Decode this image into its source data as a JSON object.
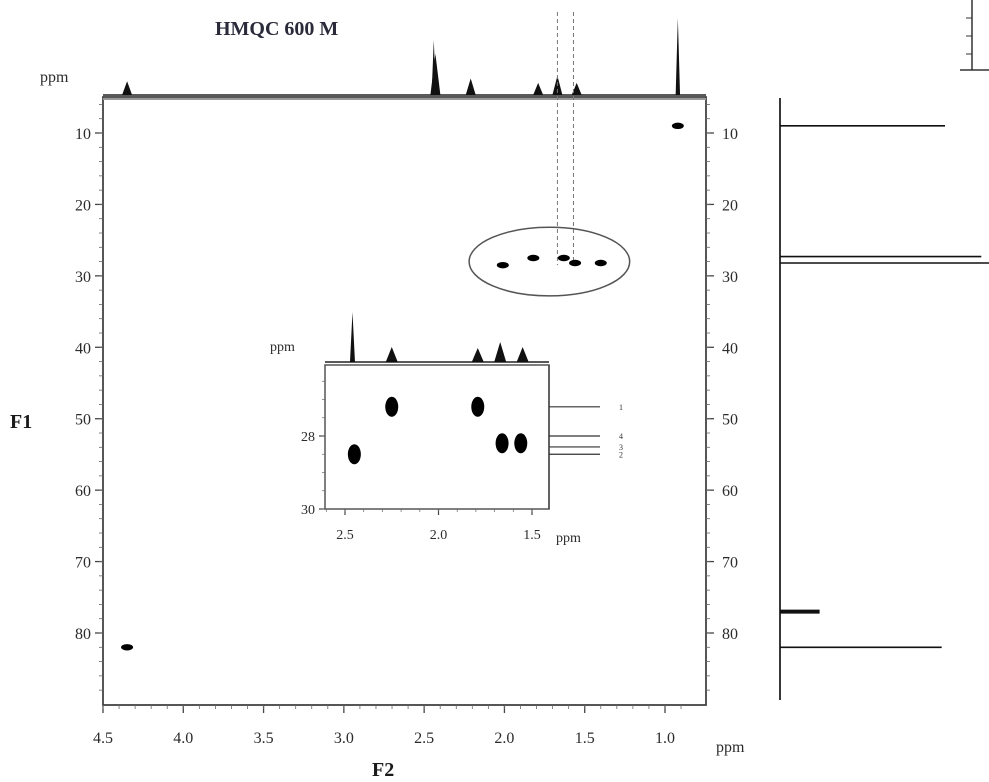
{
  "title": "HMQC 600 M",
  "chart_data": {
    "type": "scatter",
    "subtype": "2D NMR HMQC spectrum",
    "title": "HMQC 600 M",
    "xlabel": "F2",
    "ylabel": "F1",
    "x_unit": "ppm",
    "y_unit": "ppm",
    "f1_ppm_label": "ppm",
    "xlim": [
      4.5,
      0.8
    ],
    "ylim": [
      5,
      90
    ],
    "x_reversed": true,
    "y_reversed": true,
    "x_ticks": [
      "4.5",
      "4.0",
      "3.5",
      "3.0",
      "2.5",
      "2.0",
      "1.5",
      "1.0"
    ],
    "y_ticks": [
      "10",
      "20",
      "30",
      "40",
      "50",
      "60",
      "70",
      "80"
    ],
    "series": [
      {
        "points": [
          {
            "x": 0.92,
            "y": 9.0
          },
          {
            "x": 2.01,
            "y": 28.5
          },
          {
            "x": 1.82,
            "y": 27.5
          },
          {
            "x": 1.63,
            "y": 27.5
          },
          {
            "x": 1.56,
            "y": 28.2
          },
          {
            "x": 1.4,
            "y": 28.2
          },
          {
            "x": 4.35,
            "y": 82.0
          }
        ]
      }
    ],
    "top_projection": {
      "peaks": [
        {
          "x": 4.35,
          "h": 0.25
        },
        {
          "x": 2.44,
          "h": 1.0
        },
        {
          "x": 2.43,
          "h": 0.75
        },
        {
          "x": 2.21,
          "h": 0.3
        },
        {
          "x": 1.79,
          "h": 0.22
        },
        {
          "x": 1.67,
          "h": 0.35
        },
        {
          "x": 1.55,
          "h": 0.22
        },
        {
          "x": 0.92,
          "h": 1.4
        }
      ]
    },
    "right_projection": {
      "peaks": [
        {
          "y": 9.0,
          "h": 1.0
        },
        {
          "y": 27.3,
          "h": 1.22
        },
        {
          "y": 28.2,
          "h": 1.3
        },
        {
          "y": 77.0,
          "h": 0.24
        },
        {
          "y": 82.0,
          "h": 0.98
        }
      ]
    },
    "right_projection_ticks": [
      "10",
      "20",
      "30",
      "40",
      "50",
      "60",
      "70",
      "80"
    ],
    "annotations": {
      "ellipse": {
        "cx": 1.72,
        "cy": 28.0,
        "rx": 0.5,
        "ry": 4.8
      },
      "dashed_lines_x": [
        1.67,
        1.57
      ]
    },
    "inset": {
      "x_label": "ppm",
      "y_label": "ppm",
      "xlim": [
        2.6,
        1.4
      ],
      "ylim": [
        26,
        30
      ],
      "x_ticks": [
        "2.5",
        "2.0",
        "1.5"
      ],
      "y_ticks": [
        "28",
        "30"
      ],
      "points": [
        {
          "x": 2.45,
          "y": 28.5
        },
        {
          "x": 2.25,
          "y": 27.2
        },
        {
          "x": 1.79,
          "y": 27.2
        },
        {
          "x": 1.66,
          "y": 28.2
        },
        {
          "x": 1.56,
          "y": 28.2
        }
      ],
      "top_peaks": [
        {
          "x": 2.46,
          "h": 1.0
        },
        {
          "x": 2.25,
          "h": 0.3
        },
        {
          "x": 1.79,
          "h": 0.28
        },
        {
          "x": 1.67,
          "h": 0.4
        },
        {
          "x": 1.55,
          "h": 0.3
        }
      ],
      "right_peaks": [
        {
          "y": 27.2,
          "label": "1"
        },
        {
          "y": 28.0,
          "label": "4"
        },
        {
          "y": 28.3,
          "label": "3"
        },
        {
          "y": 28.5,
          "label": "2"
        }
      ]
    }
  }
}
